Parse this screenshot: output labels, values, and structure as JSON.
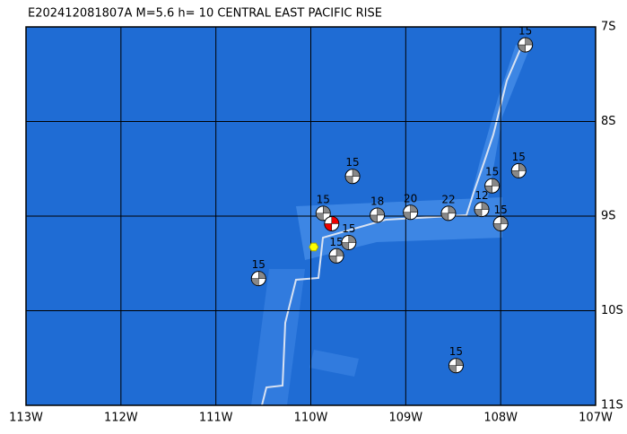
{
  "map": {
    "title": "E202412081807A  M=5.6  h= 10  CENTRAL EAST PACIFIC RISE",
    "xlim": [
      -113,
      -107
    ],
    "ylim": [
      -11,
      -7
    ],
    "xticks": [
      {
        "value": -113,
        "label": "113W"
      },
      {
        "value": -112,
        "label": "112W"
      },
      {
        "value": -111,
        "label": "111W"
      },
      {
        "value": -110,
        "label": "110W"
      },
      {
        "value": -109,
        "label": "109W"
      },
      {
        "value": -108,
        "label": "108W"
      },
      {
        "value": -107,
        "label": "107W"
      }
    ],
    "yticks": [
      {
        "value": -7,
        "label": "7S"
      },
      {
        "value": -8,
        "label": "8S"
      },
      {
        "value": -9,
        "label": "9S"
      },
      {
        "value": -10,
        "label": "10S"
      },
      {
        "value": -11,
        "label": "11S"
      }
    ],
    "events": [
      {
        "lon": -107.74,
        "lat": -7.19,
        "label": "15"
      },
      {
        "lon": -107.81,
        "lat": -8.52,
        "label": "15"
      },
      {
        "lon": -108.09,
        "lat": -8.68,
        "label": "15"
      },
      {
        "lon": -108.0,
        "lat": -9.08,
        "label": "15"
      },
      {
        "lon": -110.55,
        "lat": -9.66,
        "label": "15"
      },
      {
        "lon": -108.47,
        "lat": -10.58,
        "label": "15"
      },
      {
        "lon": -109.56,
        "lat": -8.58,
        "label": "15"
      },
      {
        "lon": -108.55,
        "lat": -8.97,
        "label": "22"
      },
      {
        "lon": -108.95,
        "lat": -8.96,
        "label": "20"
      },
      {
        "lon": -108.2,
        "lat": -8.93,
        "label": "12"
      },
      {
        "lon": -109.3,
        "lat": -8.99,
        "label": "18"
      },
      {
        "lon": -109.87,
        "lat": -8.97,
        "label": "15"
      },
      {
        "lon": -109.6,
        "lat": -9.28,
        "label": "15"
      },
      {
        "lon": -109.73,
        "lat": -9.42,
        "label": "15"
      }
    ],
    "main_event": {
      "lon": -109.78,
      "lat": -9.08
    }
  }
}
